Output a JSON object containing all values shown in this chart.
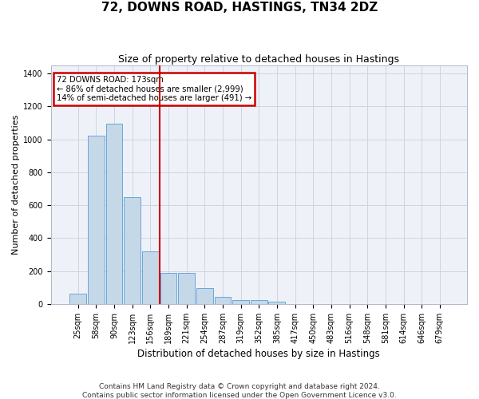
{
  "title": "72, DOWNS ROAD, HASTINGS, TN34 2DZ",
  "subtitle": "Size of property relative to detached houses in Hastings",
  "xlabel": "Distribution of detached houses by size in Hastings",
  "ylabel": "Number of detached properties",
  "footnote1": "Contains HM Land Registry data © Crown copyright and database right 2024.",
  "footnote2": "Contains public sector information licensed under the Open Government Licence v3.0.",
  "categories": [
    "25sqm",
    "58sqm",
    "90sqm",
    "123sqm",
    "156sqm",
    "189sqm",
    "221sqm",
    "254sqm",
    "287sqm",
    "319sqm",
    "352sqm",
    "385sqm",
    "417sqm",
    "450sqm",
    "483sqm",
    "516sqm",
    "548sqm",
    "581sqm",
    "614sqm",
    "646sqm",
    "679sqm"
  ],
  "values": [
    65,
    1020,
    1095,
    650,
    320,
    190,
    190,
    95,
    45,
    25,
    25,
    15,
    0,
    0,
    0,
    0,
    0,
    0,
    0,
    0,
    0
  ],
  "bar_color": "#c5d8e8",
  "bar_edge_color": "#5b9bd5",
  "property_line_label": "72 DOWNS ROAD: 173sqm",
  "annotation_line1": "← 86% of detached houses are smaller (2,999)",
  "annotation_line2": "14% of semi-detached houses are larger (491) →",
  "annotation_box_color": "#ffffff",
  "annotation_box_edge_color": "#cc0000",
  "vline_color": "#cc0000",
  "grid_color": "#ccd6e0",
  "bg_color": "#eef2f8",
  "ylim": [
    0,
    1450
  ],
  "yticks": [
    0,
    200,
    400,
    600,
    800,
    1000,
    1200,
    1400
  ],
  "title_fontsize": 11,
  "subtitle_fontsize": 9,
  "xlabel_fontsize": 8.5,
  "ylabel_fontsize": 8,
  "tick_fontsize": 7,
  "footnote_fontsize": 6.5
}
